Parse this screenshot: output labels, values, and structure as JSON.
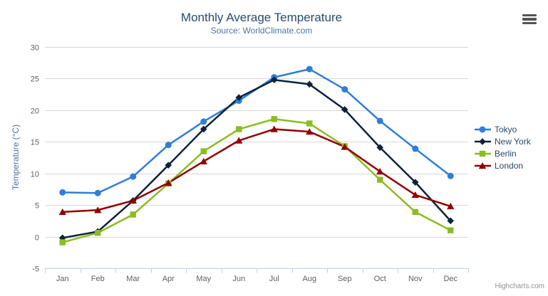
{
  "credits": "Highcharts.com",
  "menu": {
    "tooltip": "Chart context menu"
  },
  "colors": {
    "title": "#274b6d",
    "subtitle": "#4d759e",
    "axis_label": "#606060",
    "axis_title": "#4d759e",
    "grid": "#d8d8d8",
    "axis_line": "#c0d0e0",
    "legend_text": "#274b6d",
    "background": "#ffffff"
  },
  "chart_data": {
    "type": "line",
    "title": "Monthly Average Temperature",
    "subtitle": "Source: WorldClimate.com",
    "xlabel": "",
    "ylabel": "Temperature (°C)",
    "ylim": [
      -5,
      30
    ],
    "ytick_interval": 5,
    "grid": true,
    "legend_position": "right",
    "categories": [
      "Jan",
      "Feb",
      "Mar",
      "Apr",
      "May",
      "Jun",
      "Jul",
      "Aug",
      "Sep",
      "Oct",
      "Nov",
      "Dec"
    ],
    "series": [
      {
        "name": "Tokyo",
        "color": "#2f7ed8",
        "marker": "circle",
        "values": [
          7.0,
          6.9,
          9.5,
          14.5,
          18.2,
          21.5,
          25.2,
          26.5,
          23.3,
          18.3,
          13.9,
          9.6
        ]
      },
      {
        "name": "New York",
        "color": "#0d233a",
        "marker": "diamond",
        "values": [
          -0.2,
          0.8,
          5.7,
          11.3,
          17.0,
          22.0,
          24.8,
          24.1,
          20.1,
          14.1,
          8.6,
          2.5
        ]
      },
      {
        "name": "Berlin",
        "color": "#8bbc21",
        "marker": "square",
        "values": [
          -0.9,
          0.6,
          3.5,
          8.4,
          13.5,
          17.0,
          18.6,
          17.9,
          14.3,
          9.0,
          3.9,
          1.0
        ]
      },
      {
        "name": "London",
        "color": "#910000",
        "marker": "triangle",
        "values": [
          3.9,
          4.2,
          5.7,
          8.5,
          11.9,
          15.2,
          17.0,
          16.6,
          14.2,
          10.3,
          6.6,
          4.8
        ]
      }
    ]
  }
}
